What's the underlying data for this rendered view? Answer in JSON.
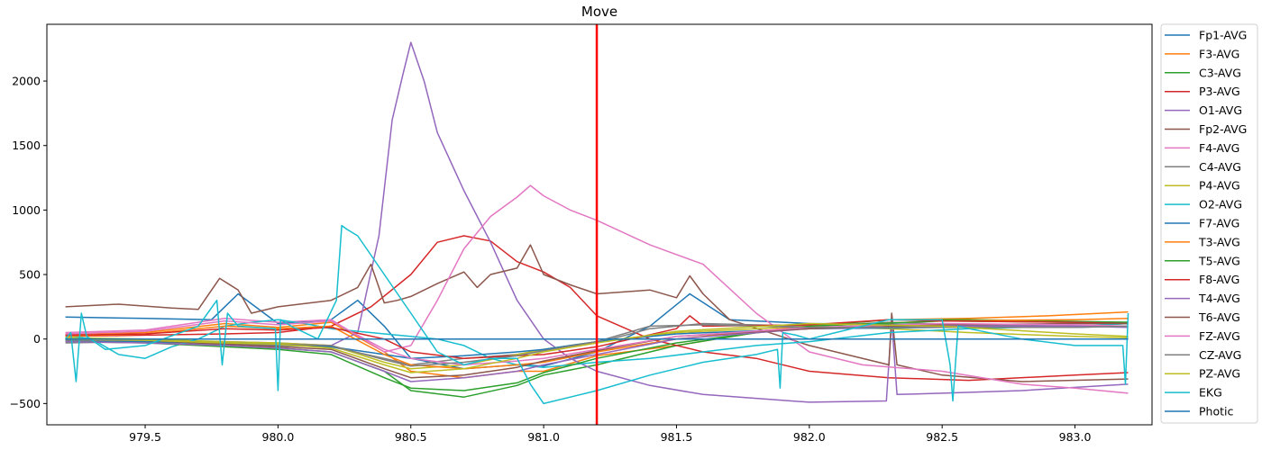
{
  "chart_data": {
    "type": "line",
    "title": "Move",
    "xlabel": "",
    "ylabel": "",
    "xlim": [
      979.13,
      983.29
    ],
    "ylim": [
      -665,
      2440
    ],
    "xticks": [
      979.5,
      980.0,
      980.5,
      981.0,
      981.5,
      982.0,
      982.5,
      983.0
    ],
    "xtick_labels": [
      "979.5",
      "980.0",
      "980.5",
      "981.0",
      "981.5",
      "982.0",
      "982.5",
      "983.0"
    ],
    "yticks": [
      -500,
      0,
      500,
      1000,
      1500,
      2000
    ],
    "ytick_labels": [
      "−500",
      "0",
      "500",
      "1000",
      "1500",
      "2000"
    ],
    "grid": false,
    "legend_position": "outside-right",
    "marker_line": {
      "x": 981.2,
      "color": "#ff0000"
    },
    "series": [
      {
        "name": "Fp1-AVG",
        "color": "#1f77b4",
        "x": [
          979.2,
          979.5,
          979.75,
          979.85,
          980.0,
          980.2,
          980.3,
          980.4,
          980.5,
          980.7,
          980.9,
          981.0,
          981.2,
          981.4,
          981.55,
          981.7,
          982.0,
          982.5,
          983.0,
          983.2
        ],
        "y": [
          170,
          160,
          150,
          350,
          120,
          150,
          300,
          100,
          -150,
          -230,
          -200,
          -210,
          -100,
          100,
          350,
          150,
          120,
          110,
          100,
          100
        ]
      },
      {
        "name": "F3-AVG",
        "color": "#ff7f0e",
        "x": [
          979.2,
          979.5,
          979.8,
          980.0,
          980.2,
          980.4,
          980.5,
          980.7,
          980.9,
          981.0,
          981.2,
          981.5,
          981.8,
          982.0,
          982.3,
          982.6,
          982.9,
          983.2
        ],
        "y": [
          40,
          50,
          120,
          90,
          130,
          -100,
          -250,
          -300,
          -250,
          -250,
          -130,
          -50,
          50,
          100,
          150,
          160,
          180,
          210
        ]
      },
      {
        "name": "C3-AVG",
        "color": "#2ca02c",
        "x": [
          979.2,
          979.5,
          979.8,
          980.0,
          980.2,
          980.4,
          980.5,
          980.7,
          980.9,
          981.0,
          981.2,
          981.5,
          981.8,
          982.0,
          982.3,
          982.6,
          982.9,
          983.2
        ],
        "y": [
          -10,
          -20,
          -50,
          -70,
          -100,
          -250,
          -400,
          -450,
          -360,
          -280,
          -200,
          -50,
          50,
          100,
          150,
          150,
          140,
          130
        ]
      },
      {
        "name": "P3-AVG",
        "color": "#d62728",
        "x": [
          979.2,
          979.5,
          979.8,
          980.0,
          980.2,
          980.35,
          980.5,
          980.6,
          980.7,
          980.8,
          980.9,
          981.0,
          981.1,
          981.2,
          981.4,
          981.6,
          981.8,
          982.0,
          982.3,
          982.6,
          983.0,
          983.2
        ],
        "y": [
          20,
          30,
          40,
          50,
          100,
          250,
          500,
          750,
          800,
          760,
          600,
          520,
          400,
          180,
          0,
          -100,
          -150,
          -250,
          -300,
          -320,
          -280,
          -260
        ]
      },
      {
        "name": "O1-AVG",
        "color": "#9467bd",
        "x": [
          979.2,
          979.5,
          979.8,
          980.0,
          980.2,
          980.3,
          980.38,
          980.43,
          980.47,
          980.5,
          980.55,
          980.6,
          980.7,
          980.8,
          980.9,
          981.0,
          981.1,
          981.2,
          981.4,
          981.6,
          981.8,
          982.0,
          982.29,
          982.31,
          982.33,
          982.5,
          982.8,
          983.2
        ],
        "y": [
          0,
          -10,
          -20,
          -30,
          -50,
          50,
          800,
          1700,
          2050,
          2300,
          2000,
          1600,
          1150,
          750,
          300,
          0,
          -150,
          -250,
          -360,
          -430,
          -460,
          -490,
          -480,
          150,
          -430,
          -420,
          -400,
          -350
        ]
      },
      {
        "name": "Fp2-AVG",
        "color": "#8c564b",
        "x": [
          979.2,
          979.4,
          979.6,
          979.7,
          979.78,
          979.85,
          979.9,
          980.0,
          980.2,
          980.3,
          980.35,
          980.4,
          980.45,
          980.5,
          980.6,
          980.7,
          980.75,
          980.8,
          980.9,
          980.95,
          981.0,
          981.1,
          981.2,
          981.4,
          981.5,
          981.55,
          981.6,
          981.7,
          982.0,
          982.3,
          982.31,
          982.33,
          982.5,
          982.8,
          983.2
        ],
        "y": [
          250,
          270,
          240,
          230,
          470,
          380,
          200,
          250,
          300,
          400,
          580,
          280,
          300,
          330,
          430,
          520,
          400,
          500,
          550,
          730,
          500,
          420,
          350,
          380,
          320,
          490,
          350,
          150,
          -50,
          -200,
          200,
          -200,
          -280,
          -330,
          -310
        ]
      },
      {
        "name": "F4-AVG",
        "color": "#e377c2",
        "x": [
          979.2,
          979.5,
          979.8,
          980.0,
          980.2,
          980.4,
          980.5,
          980.6,
          980.7,
          980.8,
          980.9,
          980.95,
          981.0,
          981.1,
          981.2,
          981.4,
          981.6,
          981.8,
          982.0,
          982.2,
          982.5,
          982.8,
          983.0,
          983.2
        ],
        "y": [
          50,
          70,
          160,
          130,
          150,
          -100,
          -50,
          300,
          700,
          950,
          1100,
          1190,
          1110,
          1000,
          920,
          730,
          580,
          200,
          -100,
          -200,
          -250,
          -350,
          -380,
          -420
        ]
      },
      {
        "name": "C4-AVG",
        "color": "#7f7f7f",
        "x": [
          979.2,
          979.5,
          979.8,
          980.0,
          980.2,
          980.4,
          980.5,
          980.7,
          980.9,
          981.0,
          981.2,
          981.4,
          981.6,
          982.0,
          982.3,
          982.6,
          983.0,
          983.2
        ],
        "y": [
          -30,
          -20,
          -40,
          -50,
          -60,
          -150,
          -200,
          -150,
          -120,
          -80,
          -30,
          80,
          120,
          100,
          130,
          110,
          100,
          120
        ]
      },
      {
        "name": "P4-AVG",
        "color": "#bcbd22",
        "x": [
          979.2,
          979.5,
          979.8,
          980.0,
          980.2,
          980.4,
          980.5,
          980.7,
          980.9,
          981.0,
          981.2,
          981.5,
          981.8,
          982.0,
          982.3,
          982.6,
          983.0,
          983.2
        ],
        "y": [
          10,
          0,
          -20,
          -30,
          -50,
          -180,
          -230,
          -200,
          -120,
          -80,
          -20,
          50,
          80,
          100,
          80,
          50,
          20,
          10
        ]
      },
      {
        "name": "O2-AVG",
        "color": "#17becf",
        "x": [
          979.2,
          979.3,
          979.4,
          979.5,
          979.6,
          979.7,
          979.8,
          979.9,
          980.0,
          980.1,
          980.2,
          980.3,
          980.4,
          980.5,
          980.6,
          980.7,
          980.8,
          980.9,
          981.0,
          981.2,
          981.4,
          981.6,
          981.8,
          982.0,
          982.3,
          982.6,
          983.0,
          983.2
        ],
        "y": [
          30,
          0,
          -120,
          -150,
          -60,
          0,
          100,
          130,
          150,
          120,
          80,
          60,
          40,
          20,
          0,
          -50,
          -150,
          -200,
          -220,
          -180,
          -150,
          -100,
          -50,
          -20,
          50,
          80,
          100,
          120
        ]
      },
      {
        "name": "F7-AVG",
        "color": "#1f77b4",
        "x": [
          979.2,
          979.5,
          979.8,
          980.0,
          980.2,
          980.4,
          980.5,
          980.7,
          980.9,
          981.0,
          981.2,
          981.5,
          982.0,
          982.5,
          983.0,
          983.2
        ],
        "y": [
          -10,
          -20,
          -30,
          -40,
          -60,
          -120,
          -150,
          -130,
          -100,
          -80,
          -20,
          40,
          80,
          90,
          90,
          100
        ]
      },
      {
        "name": "T3-AVG",
        "color": "#ff7f0e",
        "x": [
          979.2,
          979.5,
          979.8,
          980.0,
          980.2,
          980.4,
          980.5,
          980.7,
          980.9,
          981.0,
          981.2,
          981.5,
          982.0,
          982.5,
          983.0,
          983.2
        ],
        "y": [
          20,
          40,
          100,
          80,
          100,
          -120,
          -200,
          -230,
          -200,
          -180,
          -100,
          0,
          100,
          140,
          150,
          160
        ]
      },
      {
        "name": "T5-AVG",
        "color": "#2ca02c",
        "x": [
          979.2,
          979.5,
          979.8,
          980.0,
          980.2,
          980.4,
          980.5,
          980.7,
          980.9,
          981.0,
          981.2,
          981.5,
          982.0,
          982.5,
          983.0,
          983.2
        ],
        "y": [
          -20,
          -30,
          -60,
          -80,
          -120,
          -300,
          -380,
          -400,
          -340,
          -260,
          -150,
          -30,
          100,
          140,
          130,
          130
        ]
      },
      {
        "name": "F8-AVG",
        "color": "#d62728",
        "x": [
          979.2,
          979.5,
          979.8,
          980.0,
          980.2,
          980.4,
          980.5,
          980.7,
          980.9,
          981.0,
          981.2,
          981.5,
          981.55,
          981.6,
          982.0,
          982.3,
          982.5,
          983.0,
          983.2
        ],
        "y": [
          30,
          40,
          80,
          70,
          90,
          0,
          -100,
          -150,
          -130,
          -120,
          -60,
          80,
          180,
          100,
          110,
          150,
          140,
          130,
          120
        ]
      },
      {
        "name": "T4-AVG",
        "color": "#9467bd",
        "x": [
          979.2,
          979.5,
          979.8,
          980.0,
          980.2,
          980.4,
          980.5,
          980.7,
          980.9,
          981.0,
          981.2,
          981.5,
          982.0,
          982.5,
          983.0,
          983.2
        ],
        "y": [
          -20,
          -30,
          -50,
          -70,
          -100,
          -250,
          -330,
          -300,
          -250,
          -200,
          -120,
          0,
          80,
          100,
          100,
          90
        ]
      },
      {
        "name": "T6-AVG",
        "color": "#8c564b",
        "x": [
          979.2,
          979.5,
          979.8,
          980.0,
          980.2,
          980.4,
          980.5,
          980.7,
          980.9,
          981.0,
          981.2,
          981.5,
          982.0,
          982.5,
          983.0,
          983.2
        ],
        "y": [
          0,
          -10,
          -40,
          -60,
          -80,
          -230,
          -300,
          -280,
          -220,
          -170,
          -90,
          20,
          80,
          110,
          120,
          120
        ]
      },
      {
        "name": "FZ-AVG",
        "color": "#e377c2",
        "x": [
          979.2,
          979.5,
          979.8,
          980.0,
          980.2,
          980.4,
          980.5,
          980.7,
          980.9,
          981.0,
          981.2,
          981.5,
          982.0,
          982.5,
          983.0,
          983.2
        ],
        "y": [
          40,
          60,
          140,
          110,
          140,
          -80,
          -150,
          -200,
          -170,
          -150,
          -80,
          20,
          90,
          120,
          110,
          100
        ]
      },
      {
        "name": "CZ-AVG",
        "color": "#7f7f7f",
        "x": [
          979.2,
          979.5,
          979.8,
          980.0,
          980.2,
          980.4,
          980.5,
          980.7,
          980.9,
          981.0,
          981.2,
          981.4,
          981.6,
          982.0,
          982.5,
          983.0,
          983.2
        ],
        "y": [
          -10,
          -10,
          -30,
          -40,
          -50,
          -160,
          -210,
          -180,
          -130,
          -90,
          -20,
          100,
          110,
          90,
          90,
          90,
          100
        ]
      },
      {
        "name": "PZ-AVG",
        "color": "#bcbd22",
        "x": [
          979.2,
          979.5,
          979.8,
          980.0,
          980.2,
          980.4,
          980.5,
          980.7,
          980.9,
          981.0,
          981.2,
          981.5,
          982.0,
          982.5,
          983.0,
          983.2
        ],
        "y": [
          0,
          -10,
          -30,
          -40,
          -70,
          -200,
          -260,
          -230,
          -150,
          -100,
          -30,
          60,
          120,
          100,
          40,
          20
        ]
      },
      {
        "name": "EKG",
        "color": "#17becf",
        "x": [
          979.2,
          979.22,
          979.24,
          979.26,
          979.28,
          979.35,
          979.5,
          979.7,
          979.77,
          979.79,
          979.81,
          979.85,
          979.99,
          980.0,
          980.01,
          980.05,
          980.15,
          980.22,
          980.24,
          980.26,
          980.3,
          980.4,
          980.5,
          980.6,
          980.7,
          980.8,
          980.9,
          980.95,
          981.0,
          981.2,
          981.4,
          981.6,
          981.8,
          981.88,
          981.89,
          981.9,
          981.95,
          982.0,
          982.1,
          982.3,
          982.5,
          982.53,
          982.54,
          982.56,
          982.6,
          982.8,
          983.0,
          983.18,
          983.19,
          983.2
        ],
        "y": [
          0,
          50,
          -330,
          200,
          20,
          -80,
          -50,
          100,
          300,
          -200,
          200,
          100,
          80,
          -400,
          150,
          100,
          0,
          300,
          880,
          850,
          800,
          500,
          200,
          -100,
          -200,
          -150,
          -150,
          -350,
          -500,
          -400,
          -280,
          -180,
          -120,
          -80,
          -380,
          50,
          30,
          0,
          50,
          150,
          150,
          -200,
          -480,
          100,
          80,
          0,
          -50,
          -50,
          -350,
          200
        ]
      },
      {
        "name": "Photic",
        "color": "#1f77b4",
        "x": [
          979.2,
          983.2
        ],
        "y": [
          0,
          0
        ]
      }
    ]
  }
}
